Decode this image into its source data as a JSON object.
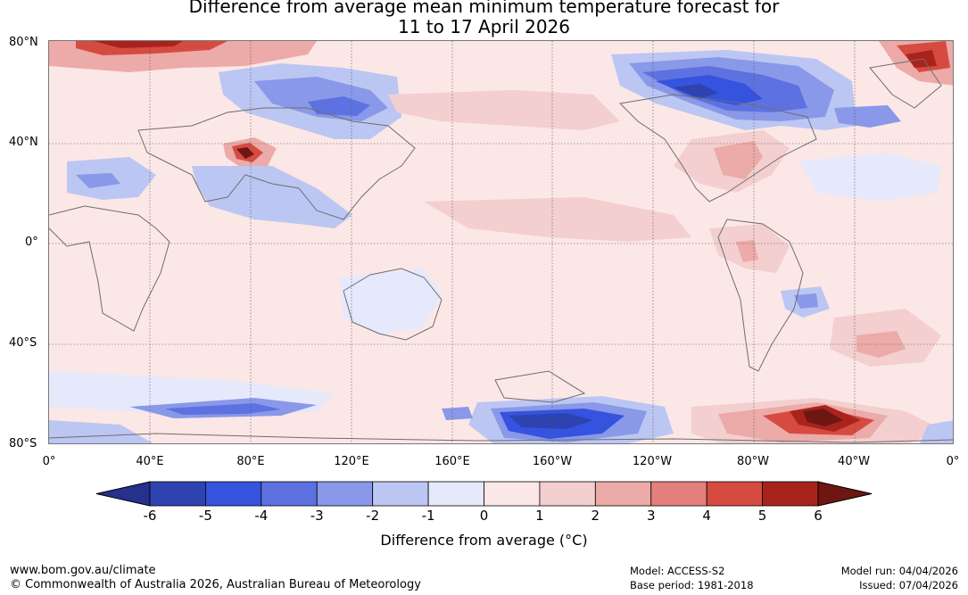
{
  "title": {
    "line1": "Difference from average mean minimum temperature forecast for",
    "line2": "11 to 17 April 2026"
  },
  "map": {
    "lat_labels": [
      "80°N",
      "40°N",
      "0°",
      "40°S",
      "80°S"
    ],
    "lon_labels": [
      "0°",
      "40°E",
      "80°E",
      "120°E",
      "160°E",
      "160°W",
      "120°W",
      "80°W",
      "40°W",
      "0°"
    ],
    "colors": {
      "background_anomaly": "#fbe7e6",
      "coastline": "#6e6e6e",
      "gridline": "#555555"
    }
  },
  "colorbar": {
    "ticks": [
      "-6",
      "-5",
      "-4",
      "-3",
      "-2",
      "-1",
      "0",
      "1",
      "2",
      "3",
      "4",
      "5",
      "6"
    ],
    "colors": [
      "#26308d",
      "#2e43b0",
      "#3553de",
      "#5d72e0",
      "#8998e8",
      "#bcc6f2",
      "#e6e9fb",
      "#fbe7e6",
      "#f3cfcf",
      "#ecaaa8",
      "#e47f7c",
      "#d64b41",
      "#a9231d",
      "#6e1712"
    ],
    "label": "Difference from average (°C)",
    "label_text": "Difference from average (",
    "label_unit": "°C",
    "label_close": ")"
  },
  "footer": {
    "website": "www.bom.gov.au/climate",
    "copyright": "© Commonwealth of Australia 2026, Australian Bureau of Meteorology",
    "model": "Model: ACCESS-S2",
    "base_period": "Base period: 1981-2018",
    "model_run": "Model run: 04/04/2026",
    "issued": "Issued: 07/04/2026"
  }
}
